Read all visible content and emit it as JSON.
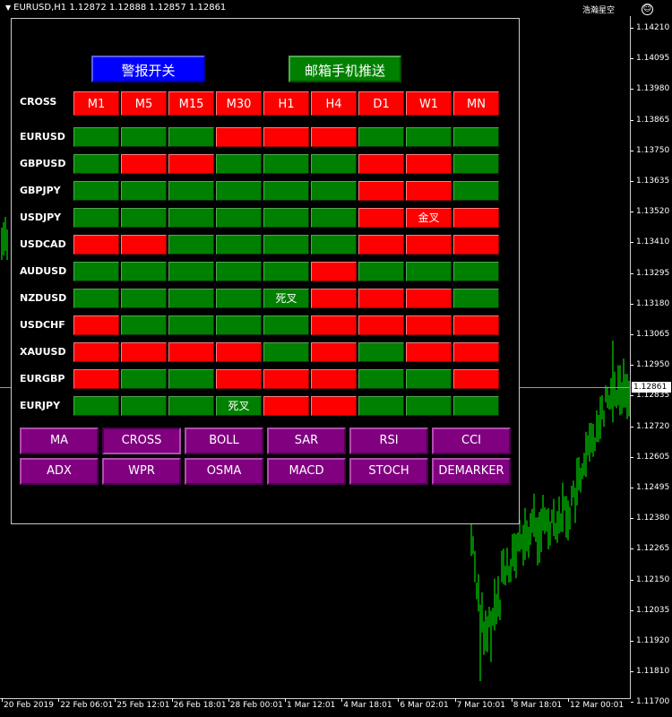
{
  "chart": {
    "symbol_line": "EURUSD,H1  1.12872 1.12888 1.12857 1.12861",
    "brand": "浩瀚星空",
    "current_price": "1.12861",
    "price_ticks": [
      "1.14210",
      "1.14095",
      "1.13980",
      "1.13865",
      "1.13750",
      "1.13635",
      "1.13520",
      "1.13410",
      "1.13295",
      "1.13180",
      "1.13065",
      "1.12950",
      "1.12835",
      "1.12720",
      "1.12605",
      "1.12495",
      "1.12380",
      "1.12265",
      "1.12150",
      "1.12035",
      "1.11920",
      "1.11810",
      "1.11700"
    ],
    "time_ticks": [
      "20 Feb 2019",
      "22 Feb 06:01",
      "25 Feb 12:01",
      "26 Feb 18:01",
      "28 Feb 00:01",
      "1 Mar 12:01",
      "4 Mar 18:01",
      "6 Mar 02:01",
      "7 Mar 10:01",
      "8 Mar 18:01",
      "12 Mar 00:01"
    ],
    "candle_color": "#00ff00"
  },
  "panel": {
    "alarm_switch": "警报开关",
    "email_push": "邮箱手机推送",
    "cross_label": "CROSS",
    "timeframes": [
      "M1",
      "M5",
      "M15",
      "M30",
      "H1",
      "H4",
      "D1",
      "W1",
      "MN"
    ],
    "rows": [
      {
        "symbol": "EURUSD",
        "states": [
          "g",
          "g",
          "g",
          "r",
          "r",
          "r",
          "g",
          "g",
          "g"
        ],
        "labels": [
          "",
          "",
          "",
          "",
          "",
          "",
          "",
          "",
          ""
        ]
      },
      {
        "symbol": "GBPUSD",
        "states": [
          "g",
          "r",
          "r",
          "g",
          "g",
          "g",
          "r",
          "r",
          "g"
        ],
        "labels": [
          "",
          "",
          "",
          "",
          "",
          "",
          "",
          "",
          ""
        ]
      },
      {
        "symbol": "GBPJPY",
        "states": [
          "g",
          "g",
          "g",
          "g",
          "g",
          "g",
          "r",
          "r",
          "g"
        ],
        "labels": [
          "",
          "",
          "",
          "",
          "",
          "",
          "",
          "",
          ""
        ]
      },
      {
        "symbol": "USDJPY",
        "states": [
          "g",
          "g",
          "g",
          "g",
          "g",
          "g",
          "r",
          "r",
          "r"
        ],
        "labels": [
          "",
          "",
          "",
          "",
          "",
          "",
          "",
          "金叉",
          ""
        ]
      },
      {
        "symbol": "USDCAD",
        "states": [
          "r",
          "r",
          "g",
          "g",
          "g",
          "g",
          "r",
          "r",
          "r"
        ],
        "labels": [
          "",
          "",
          "",
          "",
          "",
          "",
          "",
          "",
          ""
        ]
      },
      {
        "symbol": "AUDUSD",
        "states": [
          "g",
          "g",
          "g",
          "g",
          "g",
          "r",
          "g",
          "g",
          "g"
        ],
        "labels": [
          "",
          "",
          "",
          "",
          "",
          "",
          "",
          "",
          ""
        ]
      },
      {
        "symbol": "NZDUSD",
        "states": [
          "g",
          "g",
          "g",
          "g",
          "g",
          "r",
          "r",
          "r",
          "g"
        ],
        "labels": [
          "",
          "",
          "",
          "",
          "死叉",
          "",
          "",
          "",
          ""
        ]
      },
      {
        "symbol": "USDCHF",
        "states": [
          "r",
          "g",
          "g",
          "g",
          "g",
          "r",
          "r",
          "r",
          "r"
        ],
        "labels": [
          "",
          "",
          "",
          "",
          "",
          "",
          "",
          "",
          ""
        ]
      },
      {
        "symbol": "XAUUSD",
        "states": [
          "r",
          "r",
          "r",
          "r",
          "g",
          "r",
          "g",
          "r",
          "r"
        ],
        "labels": [
          "",
          "",
          "",
          "",
          "",
          "",
          "",
          "",
          ""
        ]
      },
      {
        "symbol": "EURGBP",
        "states": [
          "r",
          "g",
          "g",
          "r",
          "r",
          "r",
          "g",
          "g",
          "r"
        ],
        "labels": [
          "",
          "",
          "",
          "",
          "",
          "",
          "",
          "",
          ""
        ]
      },
      {
        "symbol": "EURJPY",
        "states": [
          "g",
          "g",
          "g",
          "g",
          "r",
          "r",
          "g",
          "g",
          "g"
        ],
        "labels": [
          "",
          "",
          "",
          "死叉",
          "",
          "",
          "",
          "",
          ""
        ]
      }
    ],
    "indicators": [
      "MA",
      "CROSS",
      "BOLL",
      "SAR",
      "RSI",
      "CCI",
      "ADX",
      "WPR",
      "OSMA",
      "MACD",
      "STOCH",
      "DEMARKER"
    ],
    "active_indicator": "CROSS",
    "colors": {
      "bull": "#008000",
      "bear": "#ff0000",
      "button": "#800080",
      "alarm": "#0000ff"
    }
  }
}
